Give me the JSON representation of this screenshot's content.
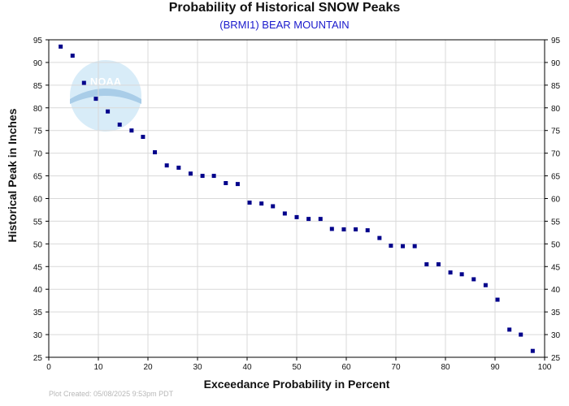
{
  "chart_data": {
    "type": "scatter",
    "title": "Probability of Historical SNOW Peaks",
    "subtitle": "(BRMI1) BEAR MOUNTAIN",
    "xlabel": "Exceedance Probability in Percent",
    "ylabel": "Historical Peak in Inches",
    "xlim": [
      0,
      100
    ],
    "ylim": [
      25,
      95
    ],
    "xticks": [
      0,
      10,
      20,
      30,
      40,
      50,
      60,
      70,
      80,
      90,
      100
    ],
    "yticks": [
      25,
      30,
      35,
      40,
      45,
      50,
      55,
      60,
      65,
      70,
      75,
      80,
      85,
      90,
      95
    ],
    "grid": true,
    "marker_color": "#00008b",
    "x": [
      2.4,
      4.8,
      7.1,
      9.5,
      11.9,
      14.3,
      16.7,
      19.0,
      21.4,
      23.8,
      26.2,
      28.6,
      31.0,
      33.3,
      35.7,
      38.1,
      40.5,
      42.9,
      45.2,
      47.6,
      50.0,
      52.4,
      54.8,
      57.1,
      59.5,
      61.9,
      64.3,
      66.7,
      69.0,
      71.4,
      73.8,
      76.2,
      78.6,
      81.0,
      83.3,
      85.7,
      88.1,
      90.5,
      92.9,
      95.2,
      97.6
    ],
    "y": [
      93.5,
      91.5,
      85.5,
      82.0,
      79.2,
      76.3,
      75.0,
      73.6,
      70.2,
      67.3,
      66.8,
      65.5,
      65.0,
      65.0,
      63.4,
      63.2,
      59.1,
      58.9,
      58.3,
      56.7,
      55.9,
      55.5,
      55.5,
      53.3,
      53.2,
      53.2,
      53.0,
      51.3,
      49.6,
      49.5,
      49.5,
      45.5,
      45.5,
      43.7,
      43.3,
      42.2,
      40.9,
      37.7,
      31.1,
      30.0,
      26.4
    ]
  },
  "footer": "Plot Created:  05/08/2025 9:53pm PDT",
  "watermark": {
    "text": "NOAA",
    "circle_color": "#d8ecf8",
    "band_color": "#a9cde8"
  }
}
